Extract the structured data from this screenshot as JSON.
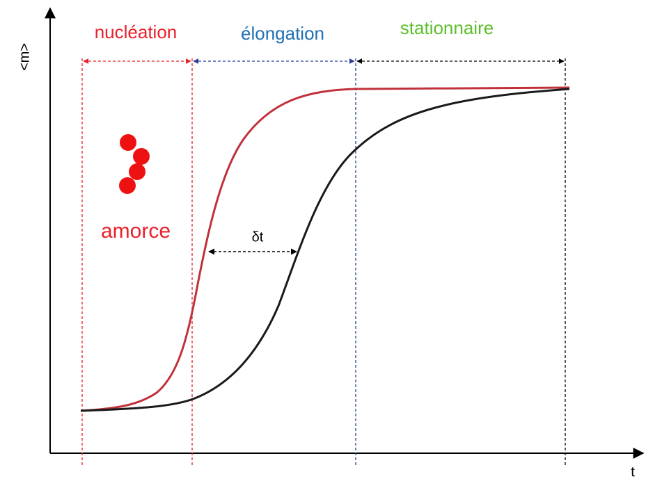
{
  "axes": {
    "y_label": "<m>",
    "x_label": "t"
  },
  "phases": [
    {
      "label": "nucléation"
    },
    {
      "label": "élongation"
    },
    {
      "label": "stationnaire"
    }
  ],
  "annotations": {
    "seed": "amorce",
    "delay": "δt"
  }
}
